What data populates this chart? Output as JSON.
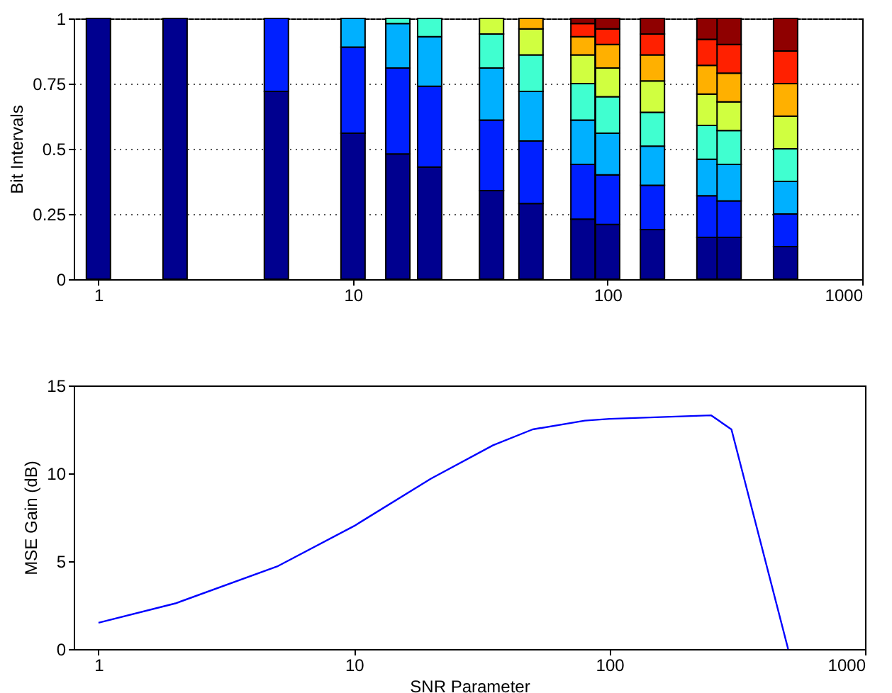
{
  "chart_data": [
    {
      "type": "bar",
      "stacked": true,
      "ylabel": "Bit Intervals",
      "log": "x",
      "grid": "y",
      "x": [
        1,
        2,
        5,
        10,
        15,
        20,
        35,
        50,
        80,
        100,
        150,
        250,
        300,
        500
      ],
      "xlim": [
        0.8,
        1000
      ],
      "xticks": [
        1,
        10,
        100,
        1000
      ],
      "ylim": [
        0,
        1
      ],
      "yticks": [
        0,
        0.25,
        0.5,
        0.75,
        1
      ],
      "series": [
        {
          "color": "#00008f",
          "values": [
            1,
            1,
            0.72,
            0.56,
            0.48,
            0.43,
            0.34,
            0.29,
            0.23,
            0.21,
            0.19,
            0.16,
            0.16,
            0.125
          ]
        },
        {
          "color": "#0020ff",
          "values": [
            null,
            null,
            0.28,
            0.33,
            0.33,
            0.31,
            0.27,
            0.24,
            0.21,
            0.19,
            0.17,
            0.16,
            0.14,
            0.125
          ]
        },
        {
          "color": "#00b0ff",
          "values": [
            null,
            null,
            null,
            0.11,
            0.17,
            0.19,
            0.2,
            0.19,
            0.17,
            0.16,
            0.15,
            0.14,
            0.14,
            0.125
          ]
        },
        {
          "color": "#40ffd0",
          "values": [
            null,
            null,
            null,
            null,
            0.02,
            0.07,
            0.13,
            0.14,
            0.14,
            0.14,
            0.13,
            0.13,
            0.13,
            0.125
          ]
        },
        {
          "color": "#d0ff40",
          "values": [
            null,
            null,
            null,
            null,
            null,
            null,
            0.06,
            0.1,
            0.11,
            0.11,
            0.12,
            0.12,
            0.11,
            0.125
          ]
        },
        {
          "color": "#ffb000",
          "values": [
            null,
            null,
            null,
            null,
            null,
            null,
            null,
            0.04,
            0.07,
            0.09,
            0.1,
            0.11,
            0.11,
            0.125
          ]
        },
        {
          "color": "#ff2000",
          "values": [
            null,
            null,
            null,
            null,
            null,
            null,
            null,
            null,
            0.05,
            0.06,
            0.08,
            0.1,
            0.11,
            0.125
          ]
        },
        {
          "color": "#8f0000",
          "values": [
            null,
            null,
            null,
            null,
            null,
            null,
            null,
            null,
            0.02,
            0.04,
            0.06,
            0.08,
            0.1,
            0.125
          ]
        }
      ]
    },
    {
      "type": "line",
      "xlabel": "SNR Parameter",
      "ylabel": "MSE Gain (dB)",
      "log": "x",
      "grid": false,
      "x": [
        1,
        2,
        5,
        10,
        20,
        35,
        50,
        80,
        100,
        250,
        300,
        500
      ],
      "xlim": [
        0.8,
        1000
      ],
      "xticks": [
        1,
        10,
        100,
        1000
      ],
      "ylim": [
        0,
        15
      ],
      "yticks": [
        0,
        5,
        10,
        15
      ],
      "series": [
        {
          "color": "#0000ff",
          "values": [
            1.5,
            2.6,
            4.7,
            7.0,
            9.7,
            11.6,
            12.5,
            13.0,
            13.1,
            13.3,
            12.5,
            0
          ]
        }
      ]
    }
  ]
}
